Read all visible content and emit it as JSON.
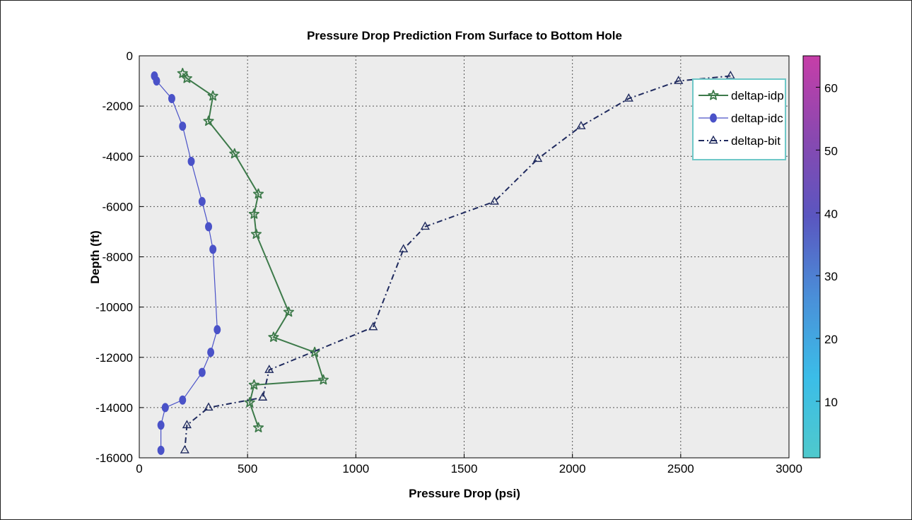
{
  "chart_data": {
    "type": "line",
    "title": "Pressure Drop Prediction From Surface to Bottom Hole",
    "xlabel": "Pressure Drop (psi)",
    "ylabel": "Depth (ft)",
    "xlim": [
      0,
      3000
    ],
    "ylim": [
      -16000,
      0
    ],
    "x_ticks": [
      "0",
      "500",
      "1000",
      "1500",
      "2000",
      "2500",
      "3000"
    ],
    "y_ticks": [
      "0",
      "-2000",
      "-4000",
      "-6000",
      "-8000",
      "-10000",
      "-12000",
      "-14000",
      "-16000"
    ],
    "grid": true,
    "legend_position": "top-right",
    "series": [
      {
        "name": "deltap-idp",
        "color": "#3d7a4a",
        "marker": "star",
        "line_style": "solid",
        "points": [
          {
            "x": 200,
            "y": -700
          },
          {
            "x": 220,
            "y": -900
          },
          {
            "x": 340,
            "y": -1600
          },
          {
            "x": 320,
            "y": -2600
          },
          {
            "x": 440,
            "y": -3900
          },
          {
            "x": 550,
            "y": -5500
          },
          {
            "x": 530,
            "y": -6300
          },
          {
            "x": 540,
            "y": -7100
          },
          {
            "x": 690,
            "y": -10200
          },
          {
            "x": 620,
            "y": -11200
          },
          {
            "x": 810,
            "y": -11800
          },
          {
            "x": 850,
            "y": -12900
          },
          {
            "x": 530,
            "y": -13100
          },
          {
            "x": 510,
            "y": -13800
          },
          {
            "x": 550,
            "y": -14800
          }
        ]
      },
      {
        "name": "deltap-idc",
        "color": "#4a52c8",
        "marker": "circle",
        "line_style": "solid",
        "points": [
          {
            "x": 70,
            "y": -800
          },
          {
            "x": 80,
            "y": -1000
          },
          {
            "x": 150,
            "y": -1700
          },
          {
            "x": 200,
            "y": -2800
          },
          {
            "x": 240,
            "y": -4200
          },
          {
            "x": 290,
            "y": -5800
          },
          {
            "x": 320,
            "y": -6800
          },
          {
            "x": 340,
            "y": -7700
          },
          {
            "x": 360,
            "y": -10900
          },
          {
            "x": 330,
            "y": -11800
          },
          {
            "x": 290,
            "y": -12600
          },
          {
            "x": 200,
            "y": -13700
          },
          {
            "x": 120,
            "y": -14000
          },
          {
            "x": 100,
            "y": -14700
          },
          {
            "x": 100,
            "y": -15700
          }
        ]
      },
      {
        "name": "deltap-bit",
        "color": "#1f2a5e",
        "marker": "triangle",
        "line_style": "dashdot",
        "points": [
          {
            "x": 2730,
            "y": -800
          },
          {
            "x": 2490,
            "y": -1000
          },
          {
            "x": 2260,
            "y": -1700
          },
          {
            "x": 2040,
            "y": -2800
          },
          {
            "x": 1840,
            "y": -4100
          },
          {
            "x": 1640,
            "y": -5800
          },
          {
            "x": 1320,
            "y": -6800
          },
          {
            "x": 1220,
            "y": -7700
          },
          {
            "x": 1080,
            "y": -10800
          },
          {
            "x": 600,
            "y": -12500
          },
          {
            "x": 570,
            "y": -13600
          },
          {
            "x": 320,
            "y": -14000
          },
          {
            "x": 220,
            "y": -14700
          },
          {
            "x": 210,
            "y": -15700
          }
        ]
      }
    ],
    "colorbar": {
      "range": [
        1,
        65
      ],
      "ticks": [
        "10",
        "20",
        "30",
        "40",
        "50",
        "60"
      ],
      "colors": [
        "#4fc9cc",
        "#3bbde8",
        "#4a8fd8",
        "#5a56c0",
        "#8a48b0",
        "#c63ea8"
      ]
    }
  }
}
